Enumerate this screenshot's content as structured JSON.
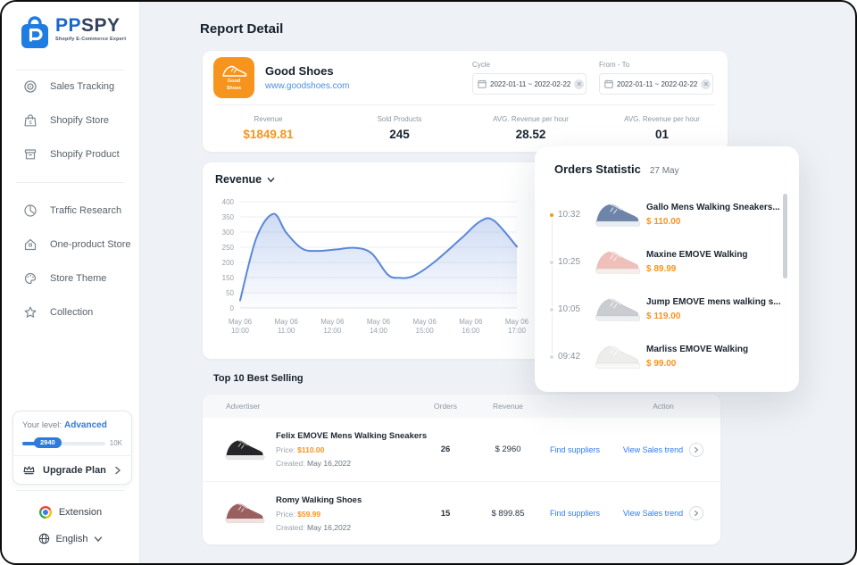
{
  "app": {
    "name_primary": "PP",
    "name_secondary": "SPY",
    "tagline": "Shopify E-Commerce Expert"
  },
  "sidebar": {
    "nav_groups": [
      {
        "items": [
          {
            "icon": "target-icon",
            "label": "Sales Tracking"
          },
          {
            "icon": "store-bag-icon",
            "label": "Shopify Store"
          },
          {
            "icon": "product-box-icon",
            "label": "Shopify Product"
          }
        ]
      },
      {
        "items": [
          {
            "icon": "pie-clock-icon",
            "label": "Traffic Research"
          },
          {
            "icon": "home-icon",
            "label": "One-product Store"
          },
          {
            "icon": "palette-icon",
            "label": "Store Theme"
          },
          {
            "icon": "star-icon",
            "label": "Collection"
          }
        ]
      }
    ],
    "level_card": {
      "label": "Your level:",
      "level": "Advanced",
      "progress_value": "2940",
      "progress_max": "10K",
      "progress_pct": 22,
      "upgrade_label": "Upgrade Plan"
    },
    "extension_label": "Extension",
    "language_label": "English"
  },
  "header": {
    "title": "Report Detail"
  },
  "store_card": {
    "badge": {
      "line1": "Good",
      "line2": "Shoes",
      "color": "#F7941D"
    },
    "name": "Good Shoes",
    "url": "www.goodshoes.com",
    "cycle": {
      "label": "Cycle",
      "value": "2022-01-11  ~  2022-02-22"
    },
    "from_to": {
      "label": "From - To",
      "value": "2022-01-11  ~  2022-02-22"
    },
    "stats": [
      {
        "label": "Revenue",
        "value": "$1849.81",
        "accent": true
      },
      {
        "label": "Sold Products",
        "value": "245",
        "accent": false
      },
      {
        "label": "AVG. Revenue per hour",
        "value": "28.52",
        "accent": false
      },
      {
        "label": "AVG. Revenue per hour",
        "value": "01",
        "accent": false
      }
    ]
  },
  "chart_data": {
    "type": "area",
    "title": "Revenue",
    "y_ticks": [
      400,
      350,
      300,
      250,
      200,
      150,
      50,
      0
    ],
    "x_tick_date": "May 06",
    "x_tick_times": [
      "10:00",
      "11:00",
      "12:00",
      "14:00",
      "15:00",
      "16:00",
      "17:00"
    ],
    "series": [
      {
        "name": "Revenue",
        "points": [
          [
            0,
            25
          ],
          [
            0.35,
            280
          ],
          [
            0.72,
            360
          ],
          [
            1.0,
            298
          ],
          [
            1.35,
            245
          ],
          [
            1.7,
            238
          ],
          [
            2.1,
            243
          ],
          [
            2.5,
            248
          ],
          [
            2.85,
            230
          ],
          [
            3.2,
            160
          ],
          [
            3.45,
            148
          ],
          [
            3.75,
            155
          ],
          [
            4.2,
            200
          ],
          [
            4.8,
            280
          ],
          [
            5.2,
            335
          ],
          [
            5.5,
            338
          ],
          [
            6,
            252
          ]
        ]
      }
    ],
    "line_color": "#5B87D8",
    "grid": true,
    "legend_position": "none"
  },
  "orders_panel": {
    "title": "Orders Statistic",
    "date": "27 May",
    "items": [
      {
        "time": "10:32",
        "active": true,
        "name": "Gallo Mens Walking Sneakers...",
        "price": "$ 110.00",
        "shoe_body": "#6E84A8",
        "shoe_sole": "#E9EDF2"
      },
      {
        "time": "10:25",
        "active": false,
        "name": "Maxine EMOVE Walking",
        "price": "$ 89.99",
        "shoe_body": "#EFC0BA",
        "shoe_sole": "#F7EDEA"
      },
      {
        "time": "10:05",
        "active": false,
        "name": "Jump EMOVE mens walking s...",
        "price": "$ 119.00",
        "shoe_body": "#C9CDD2",
        "shoe_sole": "#EDEFF1"
      },
      {
        "time": "09:42",
        "active": false,
        "name": "Marliss EMOVE Walking",
        "price": "$ 99.00",
        "shoe_body": "#EDEEEC",
        "shoe_sole": "#F8F8F6"
      }
    ]
  },
  "best_selling": {
    "title": "Top 10 Best Selling",
    "columns": {
      "advertiser": "Advertiser",
      "orders": "Orders",
      "revenue": "Revenue",
      "action": "Action"
    },
    "rows": [
      {
        "name": "Felix EMOVE Mens Walking Sneakers",
        "price_label": "Price:",
        "price": "$110.00",
        "created_label": "Created:",
        "created": "May 16,2022",
        "orders": "26",
        "revenue": "$ 2960",
        "suppliers_link": "Find suppliers",
        "trend_link": "View Sales trend",
        "shoe_body": "#26262A",
        "shoe_sole": "#E8E8EA"
      },
      {
        "name": "Romy Walking Shoes",
        "price_label": "Price:",
        "price": "$59.99",
        "created_label": "Created:",
        "created": "May 16,2022",
        "orders": "15",
        "revenue": "$ 899.85",
        "suppliers_link": "Find suppliers",
        "trend_link": "View Sales trend",
        "shoe_body": "#9B5F60",
        "shoe_sole": "#EFE2E0"
      }
    ]
  },
  "colors": {
    "accent_orange": "#F7941D",
    "link_blue": "#2F7BF6",
    "brand_blue": "#1F7CE0",
    "chart_blue": "#5B87D8"
  }
}
